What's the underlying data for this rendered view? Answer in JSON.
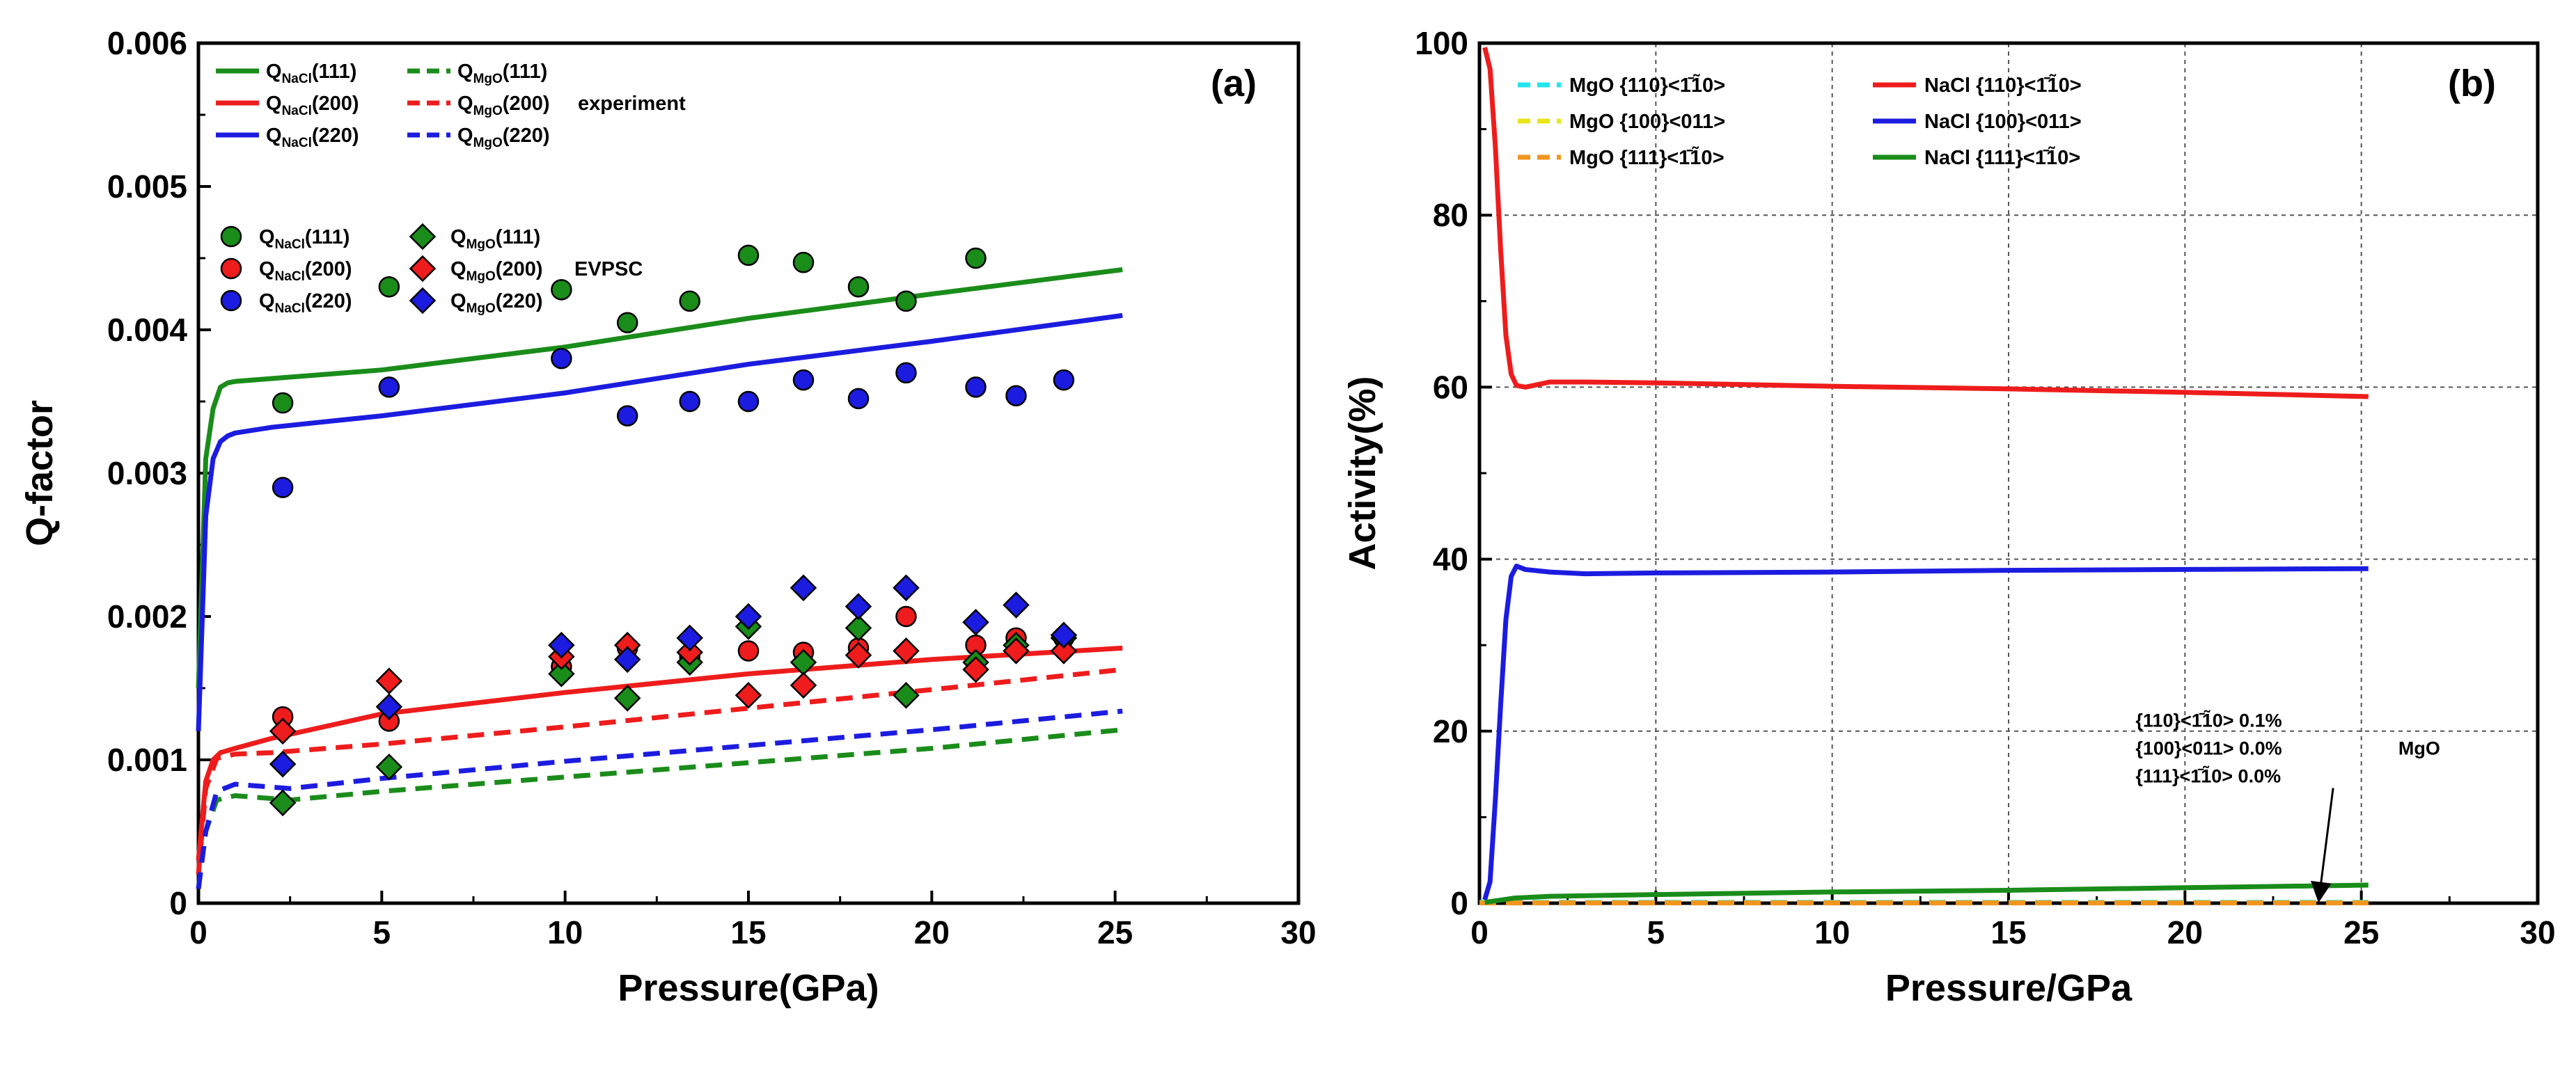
{
  "chart_data": [
    {
      "id": "a",
      "type": "line",
      "panel_label": "(a)",
      "xlabel": "Pressure(GPa)",
      "ylabel": "Q-factor",
      "xlim": [
        0,
        30
      ],
      "ylim": [
        0,
        0.006
      ],
      "xticks": [
        0,
        5,
        10,
        15,
        20,
        25,
        30
      ],
      "xtick_labels": [
        "0",
        "5",
        "10",
        "15",
        "20",
        "25",
        "30"
      ],
      "yticks": [
        0,
        0.001,
        0.002,
        0.003,
        0.004,
        0.005,
        0.006
      ],
      "ytick_labels": [
        "0",
        "0.001",
        "0.002",
        "0.003",
        "0.004",
        "0.005",
        "0.006"
      ],
      "grid": false,
      "legend_groups": [
        {
          "tag": "experiment",
          "entries": [
            "NaCl111",
            "MgO111",
            "NaCl200",
            "MgO200",
            "NaCl220",
            "MgO220"
          ]
        },
        {
          "tag": "EVPSC",
          "entries": [
            "NaCl111",
            "MgO111",
            "NaCl200",
            "MgO200",
            "NaCl220",
            "MgO220"
          ]
        }
      ],
      "series": [
        {
          "key": "NaCl111",
          "q": "Q",
          "sub": "NaCl",
          "hkl": "(111)",
          "color": "#1a8c1a",
          "style": "solid",
          "x": [
            0,
            0.2,
            0.4,
            0.6,
            0.8,
            1.0,
            2,
            5,
            10,
            15,
            20,
            25.2
          ],
          "y": [
            0.0015,
            0.0031,
            0.00345,
            0.0036,
            0.00363,
            0.00364,
            0.00366,
            0.00372,
            0.00388,
            0.00408,
            0.00425,
            0.00442
          ]
        },
        {
          "key": "NaCl200",
          "q": "Q",
          "sub": "NaCl",
          "hkl": "(200)",
          "color": "#ee1c1c",
          "style": "solid",
          "x": [
            0,
            0.2,
            0.4,
            0.6,
            1.0,
            2,
            5,
            10,
            15,
            20,
            25.2
          ],
          "y": [
            0.0003,
            0.00085,
            0.001,
            0.00105,
            0.00108,
            0.00115,
            0.00132,
            0.00147,
            0.0016,
            0.0017,
            0.00178
          ]
        },
        {
          "key": "NaCl220",
          "q": "Q",
          "sub": "NaCl",
          "hkl": "(220)",
          "color": "#1c1ce0",
          "style": "solid",
          "x": [
            0,
            0.2,
            0.4,
            0.6,
            0.8,
            1.0,
            2,
            5,
            10,
            15,
            20,
            25.2
          ],
          "y": [
            0.0012,
            0.0027,
            0.0031,
            0.00322,
            0.00326,
            0.00328,
            0.00332,
            0.0034,
            0.00356,
            0.00376,
            0.00392,
            0.0041
          ]
        },
        {
          "key": "MgO111",
          "q": "Q",
          "sub": "MgO",
          "hkl": "(111)",
          "color": "#1a8c1a",
          "style": "dashed",
          "x": [
            0,
            0.2,
            0.5,
            1.0,
            1.5,
            2.5,
            5,
            10,
            15,
            20,
            25.2
          ],
          "y": [
            0.0001,
            0.0005,
            0.00072,
            0.00075,
            0.00074,
            0.00072,
            0.00078,
            0.00088,
            0.00098,
            0.00108,
            0.00121
          ]
        },
        {
          "key": "MgO200",
          "q": "Q",
          "sub": "MgO",
          "hkl": "(200)",
          "color": "#ee1c1c",
          "style": "dashed",
          "x": [
            0,
            0.2,
            0.5,
            1.0,
            2,
            5,
            10,
            15,
            20,
            25.2
          ],
          "y": [
            0.0002,
            0.0008,
            0.00101,
            0.00104,
            0.00105,
            0.00111,
            0.00123,
            0.00136,
            0.00149,
            0.00163
          ]
        },
        {
          "key": "MgO220",
          "q": "Q",
          "sub": "MgO",
          "hkl": "(220)",
          "color": "#1c1ce0",
          "style": "dashed",
          "x": [
            0,
            0.2,
            0.5,
            1.0,
            1.5,
            2.5,
            5,
            10,
            15,
            20,
            25.2
          ],
          "y": [
            0.0001,
            0.0005,
            0.00078,
            0.00083,
            0.00082,
            0.0008,
            0.00087,
            0.00099,
            0.0011,
            0.00121,
            0.00134
          ]
        }
      ],
      "scatter": [
        {
          "key": "NaCl111",
          "q": "Q",
          "sub": "NaCl",
          "hkl": "(111)",
          "marker": "circle",
          "color": "#1a8c1a",
          "x": [
            2.3,
            5.2,
            9.9,
            11.7,
            13.4,
            15.0,
            16.5,
            18.0,
            19.3,
            21.2
          ],
          "y": [
            0.00349,
            0.0043,
            0.00428,
            0.00405,
            0.0042,
            0.00452,
            0.00447,
            0.0043,
            0.0042,
            0.0045
          ]
        },
        {
          "key": "NaCl200",
          "q": "Q",
          "sub": "NaCl",
          "hkl": "(200)",
          "marker": "circle",
          "color": "#ee1c1c",
          "x": [
            2.3,
            5.2,
            9.9,
            11.7,
            13.4,
            15.0,
            16.5,
            18.0,
            19.3,
            21.2,
            22.3,
            23.6
          ],
          "y": [
            0.0013,
            0.00127,
            0.00165,
            0.00178,
            0.00172,
            0.00176,
            0.00175,
            0.00178,
            0.002,
            0.0018,
            0.00185,
            0.00185
          ]
        },
        {
          "key": "NaCl220",
          "q": "Q",
          "sub": "NaCl",
          "hkl": "(220)",
          "marker": "circle",
          "color": "#1c1ce0",
          "x": [
            2.3,
            5.2,
            9.9,
            11.7,
            13.4,
            15.0,
            16.5,
            18.0,
            19.3,
            21.2,
            22.3,
            23.6
          ],
          "y": [
            0.0029,
            0.0036,
            0.0038,
            0.0034,
            0.0035,
            0.0035,
            0.00365,
            0.00352,
            0.0037,
            0.0036,
            0.00354,
            0.00365
          ]
        },
        {
          "key": "MgO111",
          "q": "Q",
          "sub": "MgO",
          "hkl": "(111)",
          "marker": "diamond",
          "color": "#1a8c1a",
          "x": [
            2.3,
            5.2,
            9.9,
            11.7,
            13.4,
            15.0,
            16.5,
            18.0,
            19.3,
            21.2,
            22.3,
            23.6
          ],
          "y": [
            0.0007,
            0.00095,
            0.0016,
            0.00143,
            0.00168,
            0.00193,
            0.00168,
            0.00192,
            0.00145,
            0.00168,
            0.0018,
            0.00185
          ]
        },
        {
          "key": "MgO200",
          "q": "Q",
          "sub": "MgO",
          "hkl": "(200)",
          "marker": "diamond",
          "color": "#ee1c1c",
          "x": [
            2.3,
            5.2,
            9.9,
            11.7,
            13.4,
            15.0,
            16.5,
            18.0,
            19.3,
            21.2,
            22.3,
            23.6
          ],
          "y": [
            0.0012,
            0.00155,
            0.00172,
            0.0018,
            0.00175,
            0.00145,
            0.00152,
            0.00173,
            0.00176,
            0.00163,
            0.00176,
            0.00176
          ]
        },
        {
          "key": "MgO220",
          "q": "Q",
          "sub": "MgO",
          "hkl": "(220)",
          "marker": "diamond",
          "color": "#1c1ce0",
          "x": [
            2.3,
            5.2,
            9.9,
            11.7,
            13.4,
            15.0,
            16.5,
            18.0,
            19.3,
            21.2,
            22.3,
            23.6
          ],
          "y": [
            0.00097,
            0.00137,
            0.0018,
            0.0017,
            0.00185,
            0.002,
            0.0022,
            0.00207,
            0.0022,
            0.00196,
            0.00208,
            0.00187
          ]
        }
      ]
    },
    {
      "id": "b",
      "type": "line",
      "panel_label": "(b)",
      "xlabel": "Pressure/GPa",
      "ylabel": "Activity(%)",
      "xlim": [
        0,
        30
      ],
      "ylim": [
        0,
        100
      ],
      "xticks": [
        0,
        5,
        10,
        15,
        20,
        25,
        30
      ],
      "xtick_labels": [
        "0",
        "5",
        "10",
        "15",
        "20",
        "25",
        "30"
      ],
      "yticks": [
        0,
        20,
        40,
        60,
        80,
        100
      ],
      "ytick_labels": [
        "0",
        "20",
        "40",
        "60",
        "80",
        "100"
      ],
      "grid": true,
      "series": [
        {
          "key": "MgO110",
          "name": "MgO {110}<1̄1̃0>",
          "color": "#22e5ee",
          "style": "dashed",
          "x": [
            0,
            5,
            10,
            15,
            20,
            25.2
          ],
          "y": [
            0.1,
            0.1,
            0.1,
            0.1,
            0.1,
            0.1
          ]
        },
        {
          "key": "MgO100",
          "name": "MgO {100}<011>",
          "color": "#e8e61a",
          "style": "dashed",
          "x": [
            0,
            5,
            10,
            15,
            20,
            25.2
          ],
          "y": [
            0.05,
            0.05,
            0.05,
            0.05,
            0.05,
            0.05
          ]
        },
        {
          "key": "MgO111",
          "name": "MgO {111}<1̄1̃0>",
          "color": "#f0961e",
          "style": "dashed",
          "x": [
            0,
            5,
            10,
            15,
            20,
            25.2
          ],
          "y": [
            0.03,
            0.03,
            0.03,
            0.03,
            0.03,
            0.03
          ]
        },
        {
          "key": "NaCl110",
          "name": "NaCl {110}<1̄1̃0>",
          "color": "#ee1c1c",
          "style": "solid",
          "x": [
            0.15,
            0.3,
            0.45,
            0.6,
            0.75,
            0.9,
            1.05,
            1.3,
            2,
            3,
            5,
            10,
            15,
            20,
            25.2
          ],
          "y": [
            99.5,
            97,
            88,
            76,
            66,
            61.5,
            60.2,
            60.0,
            60.6,
            60.6,
            60.5,
            60.1,
            59.8,
            59.4,
            58.9
          ]
        },
        {
          "key": "NaCl100",
          "name": "NaCl {100}<011>",
          "color": "#1c1ce0",
          "style": "solid",
          "x": [
            0.15,
            0.3,
            0.45,
            0.6,
            0.75,
            0.9,
            1.05,
            1.3,
            2,
            3,
            5,
            10,
            15,
            20,
            25.2
          ],
          "y": [
            0.4,
            2.5,
            12,
            23,
            33,
            38,
            39.2,
            38.8,
            38.5,
            38.3,
            38.4,
            38.5,
            38.7,
            38.8,
            38.9
          ]
        },
        {
          "key": "NaCl111",
          "name": "NaCl {111}<1̄1̃0>",
          "color": "#1a8c1a",
          "style": "solid",
          "x": [
            0.15,
            0.5,
            1.0,
            2,
            5,
            10,
            15,
            20,
            25.2
          ],
          "y": [
            0.1,
            0.3,
            0.6,
            0.8,
            1.0,
            1.3,
            1.5,
            1.8,
            2.1
          ]
        }
      ],
      "annotation": {
        "lines": [
          "{110}<1̄1̃0> 0.1%",
          "{100}<011> 0.0%",
          "{111}<1̄1̃0> 0.0%"
        ],
        "tag": "MgO",
        "arrow_to": [
          23.8,
          0.2
        ]
      }
    }
  ]
}
